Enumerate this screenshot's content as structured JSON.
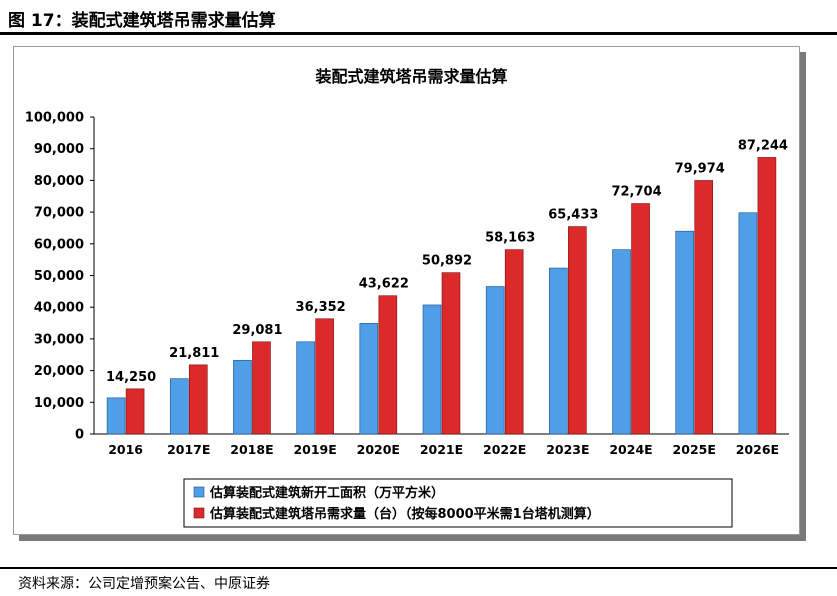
{
  "figure": {
    "title": "图 17：装配式建筑塔吊需求量估算",
    "source": "资料来源：公司定增预案公告、中原证券"
  },
  "chart_data": {
    "type": "bar",
    "title": "装配式建筑塔吊需求量估算",
    "categories": [
      "2016",
      "2017E",
      "2018E",
      "2019E",
      "2020E",
      "2021E",
      "2022E",
      "2023E",
      "2024E",
      "2025E",
      "2026E"
    ],
    "series": [
      {
        "name": "估算装配式建筑新开工面积（万平方米）",
        "color": "#4f9ee8",
        "values": [
          11400,
          17450,
          23260,
          29080,
          34900,
          40710,
          46530,
          52350,
          58160,
          63980,
          69800
        ]
      },
      {
        "name": "估算装配式建筑塔吊需求量（台）（按每8000平米需1台塔机测算）",
        "color": "#dc2a2a",
        "values": [
          14250,
          21811,
          29081,
          36352,
          43622,
          50892,
          58163,
          65433,
          72704,
          79974,
          87244
        ],
        "labels": [
          "14,250",
          "21,811",
          "29,081",
          "36,352",
          "43,622",
          "50,892",
          "58,163",
          "65,433",
          "72,704",
          "79,974",
          "87,244"
        ]
      }
    ],
    "ylim": [
      0,
      100000
    ],
    "yticks": [
      0,
      10000,
      20000,
      30000,
      40000,
      50000,
      60000,
      70000,
      80000,
      90000,
      100000
    ],
    "ytick_labels": [
      "0",
      "10,000",
      "20,000",
      "30,000",
      "40,000",
      "50,000",
      "60,000",
      "70,000",
      "80,000",
      "90,000",
      "100,000"
    ],
    "xlabel": "",
    "ylabel": "",
    "grid": false,
    "legend_position": "bottom"
  }
}
